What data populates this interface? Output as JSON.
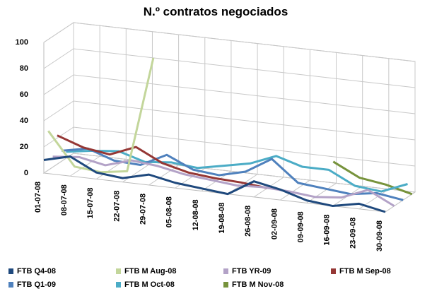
{
  "chart_data": {
    "type": "line3d",
    "title": "N.º contratos negociados",
    "categories": [
      "01-07-08",
      "08-07-08",
      "15-07-08",
      "22-07-08",
      "29-07-08",
      "05-08-08",
      "12-08-08",
      "19-08-08",
      "26-08-08",
      "02-09-08",
      "09-09-08",
      "16-09-08",
      "23-09-08",
      "30-09-08"
    ],
    "ylim": [
      0,
      100
    ],
    "yticks": [
      0,
      20,
      40,
      60,
      80,
      100
    ],
    "grid": true,
    "series": [
      {
        "name": "FTB Q4-08",
        "color": "#1f497d",
        "values": [
          10,
          15,
          5,
          3,
          8,
          4,
          2,
          0,
          12,
          8,
          2,
          0,
          4,
          0
        ]
      },
      {
        "name": "FTB M Aug-08",
        "color": "#c3d69b",
        "values": [
          30,
          5,
          3,
          6,
          95,
          null,
          null,
          null,
          null,
          null,
          null,
          null,
          null,
          null
        ]
      },
      {
        "name": "FTB YR-09",
        "color": "#b3a2c7",
        "values": [
          8,
          10,
          6,
          12,
          10,
          6,
          4,
          2,
          3,
          2,
          0,
          2,
          10,
          0
        ]
      },
      {
        "name": "FTB M Sep-08",
        "color": "#953735",
        "values": [
          22,
          15,
          12,
          20,
          10,
          5,
          3,
          2,
          0,
          null,
          null,
          null,
          null,
          null
        ]
      },
      {
        "name": "FTB Q1-09",
        "color": "#4f81bd",
        "values": [
          8,
          12,
          5,
          4,
          14,
          5,
          3,
          8,
          20,
          4,
          2,
          0,
          3,
          0
        ]
      },
      {
        "name": "FTB M Oct-08",
        "color": "#4bacc6",
        "values": [
          5,
          8,
          10,
          4,
          6,
          4,
          8,
          12,
          20,
          14,
          14,
          4,
          2,
          10
        ]
      },
      {
        "name": "FTB M Nov-08",
        "color": "#77933c",
        "values": [
          null,
          null,
          null,
          null,
          null,
          null,
          null,
          null,
          null,
          null,
          18,
          8,
          5,
          0
        ]
      }
    ]
  }
}
